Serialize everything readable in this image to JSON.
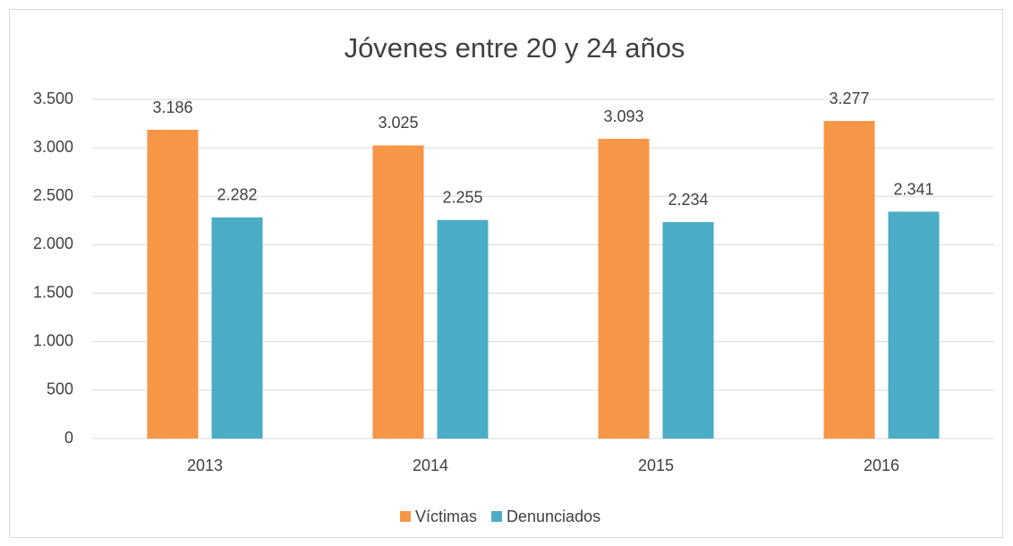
{
  "chart_data": {
    "type": "bar",
    "title": "Jóvenes entre 20 y 24 años",
    "categories": [
      "2013",
      "2014",
      "2015",
      "2016"
    ],
    "series": [
      {
        "name": "Víctimas",
        "color": "#f79646",
        "values": [
          3186,
          3025,
          3093,
          3277
        ],
        "value_labels": [
          "3.186",
          "3.025",
          "3.093",
          "3.277"
        ]
      },
      {
        "name": "Denunciados",
        "color": "#4bacc6",
        "values": [
          2282,
          2255,
          2234,
          2341
        ],
        "value_labels": [
          "2.282",
          "2.255",
          "2.234",
          "2.341"
        ]
      }
    ],
    "ylim": [
      0,
      3500
    ],
    "yticks": [
      0,
      500,
      {
        "value": 1000,
        "label": "1.000"
      },
      {
        "value": 1500,
        "label": "1.500"
      },
      {
        "value": 2000,
        "label": "2.000"
      },
      {
        "value": 2500,
        "label": "2.500"
      },
      {
        "value": 3000,
        "label": "3.000"
      },
      {
        "value": 3500,
        "label": "3.500"
      }
    ],
    "grid": true,
    "legend": "bottom"
  }
}
